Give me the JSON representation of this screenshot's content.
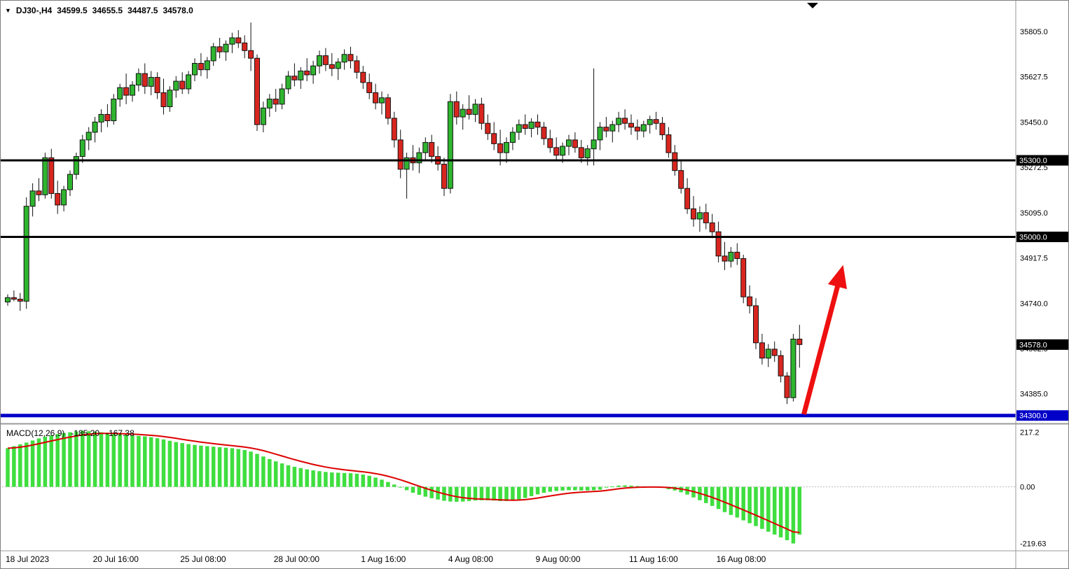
{
  "window": {
    "bg": "#ffffff",
    "border": "#7f7f7f"
  },
  "icons": {
    "collapse": "▼"
  },
  "info_bar": {
    "symbol_period": "DJ30-,H4",
    "open": "34599.5",
    "high": "34655.5",
    "low": "34487.5",
    "close": "34578.0"
  },
  "colors": {
    "bull": "#2fb52f",
    "bear": "#d8261f",
    "wick": "#111111",
    "hist": "#3fde3f",
    "signal": "#dd0000",
    "level_black": "#000000",
    "level_blue": "#0000c8",
    "arrow": "#ee1010",
    "badge_black": "#000000",
    "badge_blue": "#0000c8",
    "badge_text": "#ffffff",
    "axis_text": "#000000",
    "separator": "#9a9a9a",
    "axis_line": "#9a9a9a",
    "zero_line": "#b8b8b8"
  },
  "chart_data": {
    "type": "candlestick",
    "title": "DJ30-,H4",
    "subpanel": "MACD",
    "y_axis": {
      "ticks": [
        35805.0,
        35627.5,
        35450.0,
        35272.5,
        35095.0,
        34917.5,
        34740.0,
        34562.5,
        34385.0
      ],
      "price_max": 35920,
      "price_min": 34280
    },
    "x_axis": {
      "labels": [
        {
          "i": 0,
          "label": "18 Jul 2023"
        },
        {
          "i": 14,
          "label": "20 Jul 16:00"
        },
        {
          "i": 28,
          "label": "25 Jul 08:00"
        },
        {
          "i": 43,
          "label": "28 Jul 00:00"
        },
        {
          "i": 57,
          "label": "1 Aug 16:00"
        },
        {
          "i": 71,
          "label": "4 Aug 08:00"
        },
        {
          "i": 85,
          "label": "9 Aug 00:00"
        },
        {
          "i": 100,
          "label": "11 Aug 16:00"
        },
        {
          "i": 114,
          "label": "16 Aug 08:00"
        }
      ]
    },
    "levels": [
      {
        "price": 35300.0,
        "label": "35300.0",
        "color": "black",
        "width": 3
      },
      {
        "price": 35000.0,
        "label": "35000.0",
        "color": "black",
        "width": 3
      },
      {
        "price": 34300.0,
        "label": "34300.0",
        "color": "blue",
        "width": 5
      }
    ],
    "current_price": {
      "price": 34578.0,
      "label": "34578.0"
    },
    "candles": [
      [
        34745,
        34775,
        34730,
        34762
      ],
      [
        34762,
        34790,
        34748,
        34756
      ],
      [
        34756,
        34780,
        34710,
        34748
      ],
      [
        34748,
        35155,
        34718,
        35120
      ],
      [
        35120,
        35210,
        35080,
        35180
      ],
      [
        35180,
        35230,
        35140,
        35165
      ],
      [
        35165,
        35330,
        35150,
        35310
      ],
      [
        35310,
        35345,
        35150,
        35170
      ],
      [
        35170,
        35220,
        35090,
        35125
      ],
      [
        35125,
        35200,
        35100,
        35185
      ],
      [
        35185,
        35260,
        35160,
        35245
      ],
      [
        35245,
        35330,
        35225,
        35315
      ],
      [
        35315,
        35400,
        35290,
        35380
      ],
      [
        35380,
        35430,
        35340,
        35410
      ],
      [
        35410,
        35470,
        35370,
        35450
      ],
      [
        35450,
        35500,
        35410,
        35480
      ],
      [
        35480,
        35520,
        35430,
        35455
      ],
      [
        35455,
        35560,
        35440,
        35540
      ],
      [
        35540,
        35600,
        35510,
        35585
      ],
      [
        35585,
        35640,
        35520,
        35555
      ],
      [
        35555,
        35610,
        35530,
        35595
      ],
      [
        35595,
        35660,
        35570,
        35640
      ],
      [
        35640,
        35680,
        35560,
        35590
      ],
      [
        35590,
        35650,
        35555,
        35625
      ],
      [
        35625,
        35645,
        35540,
        35565
      ],
      [
        35565,
        35620,
        35480,
        35510
      ],
      [
        35510,
        35590,
        35490,
        35575
      ],
      [
        35575,
        35630,
        35545,
        35610
      ],
      [
        35610,
        35645,
        35560,
        35580
      ],
      [
        35580,
        35650,
        35560,
        35635
      ],
      [
        35635,
        35700,
        35610,
        35680
      ],
      [
        35680,
        35720,
        35630,
        35655
      ],
      [
        35655,
        35705,
        35620,
        35690
      ],
      [
        35690,
        35760,
        35670,
        35745
      ],
      [
        35745,
        35780,
        35700,
        35725
      ],
      [
        35725,
        35770,
        35690,
        35755
      ],
      [
        35755,
        35800,
        35720,
        35780
      ],
      [
        35780,
        35810,
        35740,
        35760
      ],
      [
        35760,
        35790,
        35700,
        35730
      ],
      [
        35730,
        35840,
        35650,
        35700
      ],
      [
        35700,
        35715,
        35415,
        35440
      ],
      [
        35440,
        35530,
        35410,
        35505
      ],
      [
        35505,
        35560,
        35470,
        35540
      ],
      [
        35540,
        35580,
        35490,
        35520
      ],
      [
        35520,
        35600,
        35500,
        35580
      ],
      [
        35580,
        35650,
        35560,
        35630
      ],
      [
        35630,
        35680,
        35590,
        35615
      ],
      [
        35615,
        35665,
        35580,
        35650
      ],
      [
        35650,
        35700,
        35610,
        35635
      ],
      [
        35635,
        35690,
        35600,
        35670
      ],
      [
        35670,
        35730,
        35640,
        35710
      ],
      [
        35710,
        35740,
        35650,
        35675
      ],
      [
        35675,
        35720,
        35630,
        35660
      ],
      [
        35660,
        35700,
        35615,
        35685
      ],
      [
        35685,
        35735,
        35655,
        35715
      ],
      [
        35715,
        35745,
        35660,
        35690
      ],
      [
        35690,
        35710,
        35620,
        35645
      ],
      [
        35645,
        35670,
        35580,
        35605
      ],
      [
        35605,
        35640,
        35540,
        35565
      ],
      [
        35565,
        35600,
        35500,
        35525
      ],
      [
        35525,
        35570,
        35480,
        35545
      ],
      [
        35545,
        35560,
        35440,
        35465
      ],
      [
        35465,
        35490,
        35350,
        35380
      ],
      [
        35380,
        35420,
        35230,
        35265
      ],
      [
        35265,
        35330,
        35150,
        35310
      ],
      [
        35310,
        35360,
        35260,
        35290
      ],
      [
        35290,
        35350,
        35250,
        35330
      ],
      [
        35330,
        35390,
        35300,
        35370
      ],
      [
        35370,
        35400,
        35290,
        35315
      ],
      [
        35315,
        35355,
        35260,
        35285
      ],
      [
        35285,
        35310,
        35160,
        35190
      ],
      [
        35190,
        35560,
        35170,
        35530
      ],
      [
        35530,
        35570,
        35440,
        35470
      ],
      [
        35470,
        35520,
        35420,
        35500
      ],
      [
        35500,
        35555,
        35460,
        35480
      ],
      [
        35480,
        35540,
        35450,
        35520
      ],
      [
        35520,
        35545,
        35420,
        35445
      ],
      [
        35445,
        35480,
        35380,
        35405
      ],
      [
        35405,
        35450,
        35340,
        35365
      ],
      [
        35365,
        35420,
        35280,
        35330
      ],
      [
        35330,
        35390,
        35290,
        35370
      ],
      [
        35370,
        35430,
        35340,
        35410
      ],
      [
        35410,
        35460,
        35380,
        35440
      ],
      [
        35440,
        35480,
        35400,
        35425
      ],
      [
        35425,
        35465,
        35390,
        35450
      ],
      [
        35450,
        35480,
        35400,
        35430
      ],
      [
        35430,
        35450,
        35360,
        35385
      ],
      [
        35385,
        35420,
        35330,
        35350
      ],
      [
        35350,
        35390,
        35300,
        35320
      ],
      [
        35320,
        35370,
        35290,
        35355
      ],
      [
        35355,
        35400,
        35320,
        35380
      ],
      [
        35380,
        35410,
        35330,
        35350
      ],
      [
        35350,
        35380,
        35290,
        35310
      ],
      [
        35310,
        35360,
        35280,
        35345
      ],
      [
        35345,
        35660,
        35280,
        35380
      ],
      [
        35380,
        35450,
        35340,
        35430
      ],
      [
        35430,
        35470,
        35390,
        35415
      ],
      [
        35415,
        35455,
        35370,
        35440
      ],
      [
        35440,
        35490,
        35410,
        35465
      ],
      [
        35465,
        35500,
        35420,
        35445
      ],
      [
        35445,
        35480,
        35400,
        35430
      ],
      [
        35430,
        35460,
        35380,
        35415
      ],
      [
        35415,
        35455,
        35390,
        35440
      ],
      [
        35440,
        35475,
        35405,
        35460
      ],
      [
        35460,
        35490,
        35420,
        35445
      ],
      [
        35445,
        35470,
        35380,
        35400
      ],
      [
        35400,
        35430,
        35310,
        35330
      ],
      [
        35330,
        35360,
        35240,
        35260
      ],
      [
        35260,
        35300,
        35170,
        35190
      ],
      [
        35190,
        35230,
        35090,
        35110
      ],
      [
        35110,
        35160,
        35040,
        35070
      ],
      [
        35070,
        35120,
        35020,
        35095
      ],
      [
        35095,
        35130,
        35030,
        35055
      ],
      [
        35055,
        35090,
        34995,
        35020
      ],
      [
        35020,
        35060,
        34900,
        34925
      ],
      [
        34925,
        34980,
        34870,
        34905
      ],
      [
        34905,
        34960,
        34880,
        34940
      ],
      [
        34940,
        34975,
        34890,
        34915
      ],
      [
        34915,
        34930,
        34740,
        34765
      ],
      [
        34765,
        34810,
        34700,
        34730
      ],
      [
        34730,
        34760,
        34560,
        34585
      ],
      [
        34585,
        34620,
        34500,
        34525
      ],
      [
        34525,
        34580,
        34490,
        34560
      ],
      [
        34560,
        34590,
        34510,
        34535
      ],
      [
        34535,
        34555,
        34430,
        34455
      ],
      [
        34455,
        34470,
        34345,
        34370
      ],
      [
        34370,
        34620,
        34355,
        34599.5
      ],
      [
        34599.5,
        34655.5,
        34487.5,
        34578
      ]
    ],
    "macd": {
      "label": "MACD(12,26,9)",
      "macd_value": "-185.20",
      "signal_value": "-167.38",
      "signal_period": 9,
      "scale": {
        "max": "217.2",
        "zero": "0.00",
        "min": "-219.63"
      },
      "histogram": [
        150,
        158,
        165,
        172,
        180,
        188,
        195,
        200,
        205,
        209,
        212,
        215,
        217.2,
        216,
        214,
        212,
        209,
        206,
        204,
        202,
        200,
        198,
        196,
        193,
        189,
        184,
        179,
        174,
        170,
        166,
        163,
        160,
        158,
        156,
        154,
        152,
        150,
        147,
        143,
        137,
        128,
        118,
        108,
        99,
        91,
        84,
        78,
        73,
        68,
        64,
        61,
        58,
        56,
        55,
        54,
        53,
        51,
        48,
        43,
        36,
        28,
        19,
        9,
        -2,
        -13,
        -23,
        -31,
        -38,
        -44,
        -49,
        -54,
        -57,
        -58,
        -57,
        -55,
        -53,
        -52,
        -52,
        -53,
        -55,
        -55,
        -53,
        -49,
        -43,
        -36,
        -29,
        -23,
        -19,
        -16,
        -14,
        -13,
        -13,
        -14,
        -14,
        -13,
        -11,
        -2,
        2,
        5,
        6,
        5,
        3,
        2,
        1,
        -1,
        -3,
        -9,
        -14,
        -21,
        -30,
        -41,
        -52,
        -63,
        -74,
        -86,
        -98,
        -109,
        -119,
        -130,
        -141,
        -152,
        -163,
        -174,
        -185,
        -196,
        -207,
        -219.63,
        -185.2
      ]
    },
    "annotations": [
      {
        "type": "arrow",
        "from_index": 127.7,
        "from_price": 34305,
        "to_index": 134,
        "to_price": 34890,
        "stroke_width": 7
      }
    ]
  }
}
